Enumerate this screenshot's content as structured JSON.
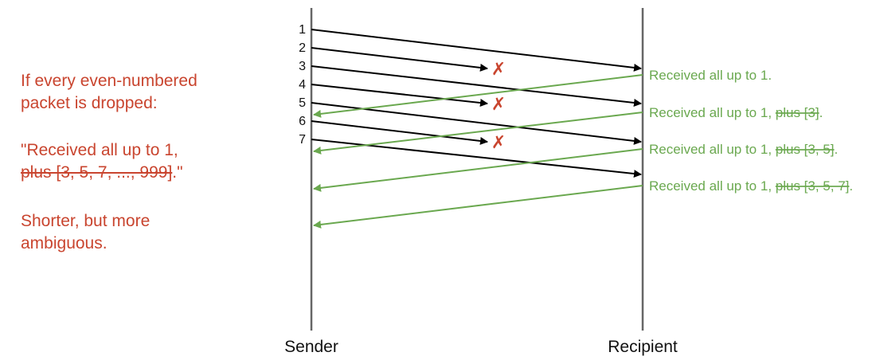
{
  "note": {
    "line1": "If every even-numbered",
    "line2": "packet is dropped:",
    "quote_open": "\"Received all up to 1,",
    "quote_struck": "plus [3, 5, 7, ..., 999]",
    "quote_close": ".\"",
    "conclusion_line1": "Shorter, but more",
    "conclusion_line2": "ambiguous."
  },
  "hosts": {
    "sender": "Sender",
    "recipient": "Recipient"
  },
  "packets": [
    "1",
    "2",
    "3",
    "4",
    "5",
    "6",
    "7"
  ],
  "drop_mark": "✗",
  "acks": [
    {
      "prefix": "Received all up to 1.",
      "struck": "",
      "suffix": ""
    },
    {
      "prefix": "Received all up to 1, ",
      "struck": "plus [3]",
      "suffix": "."
    },
    {
      "prefix": "Received all up to 1, ",
      "struck": "plus [3, 5]",
      "suffix": "."
    },
    {
      "prefix": "Received all up to 1, ",
      "struck": "plus [3, 5, 7]",
      "suffix": "."
    }
  ],
  "colors": {
    "packet": "#000000",
    "ack": "#6aa84f",
    "drop": "#c9452f",
    "timeline": "#666666"
  }
}
